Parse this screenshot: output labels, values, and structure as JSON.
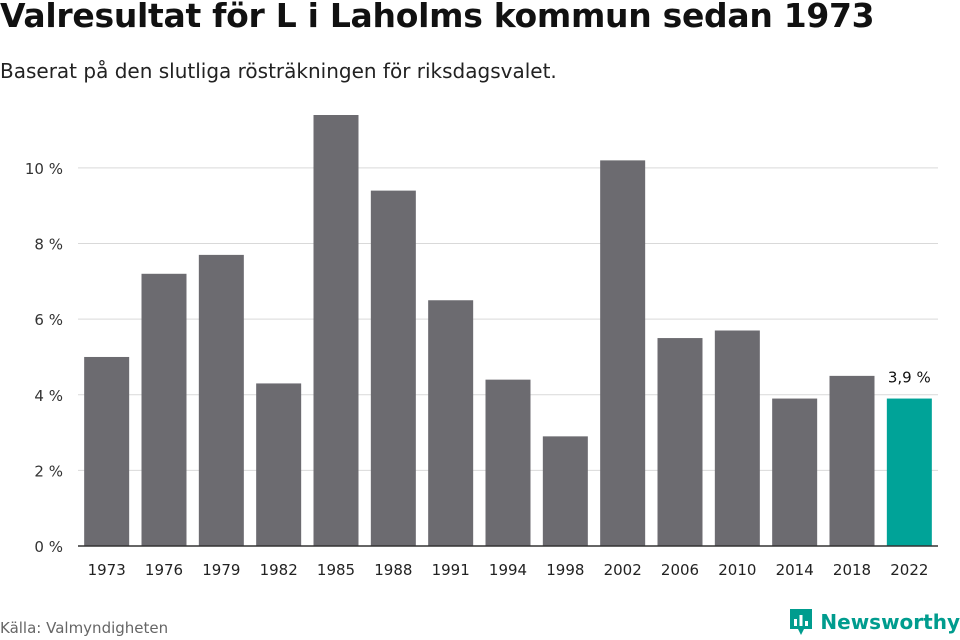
{
  "title": "Valresultat för L i Laholms kommun sedan 1973",
  "subtitle": "Baserat på den slutliga rösträkningen för riksdagsvalet.",
  "source": "Källa: Valmyndigheten",
  "brand": "Newsworthy",
  "colors": {
    "bar": "#6c6b70",
    "highlight": "#00a398",
    "grid": "#d9d9d9",
    "axis": "#333333",
    "brand": "#009c8e"
  },
  "chart_data": {
    "type": "bar",
    "title": "Valresultat för L i Laholms kommun sedan 1973",
    "xlabel": "",
    "ylabel": "",
    "categories": [
      "1973",
      "1976",
      "1979",
      "1982",
      "1985",
      "1988",
      "1991",
      "1994",
      "1998",
      "2002",
      "2006",
      "2010",
      "2014",
      "2018",
      "2022"
    ],
    "values": [
      5.0,
      7.2,
      7.7,
      4.3,
      11.4,
      9.4,
      6.5,
      4.4,
      2.9,
      10.2,
      5.5,
      5.7,
      3.9,
      4.5,
      3.9
    ],
    "ylim": [
      0,
      11.4
    ],
    "yticks": [
      0,
      2,
      4,
      6,
      8,
      10
    ],
    "ytick_labels": [
      "0 %",
      "2 %",
      "4 %",
      "6 %",
      "8 %",
      "10 %"
    ],
    "highlight_index": 14,
    "annotation": "3,9 %",
    "grid": true
  }
}
